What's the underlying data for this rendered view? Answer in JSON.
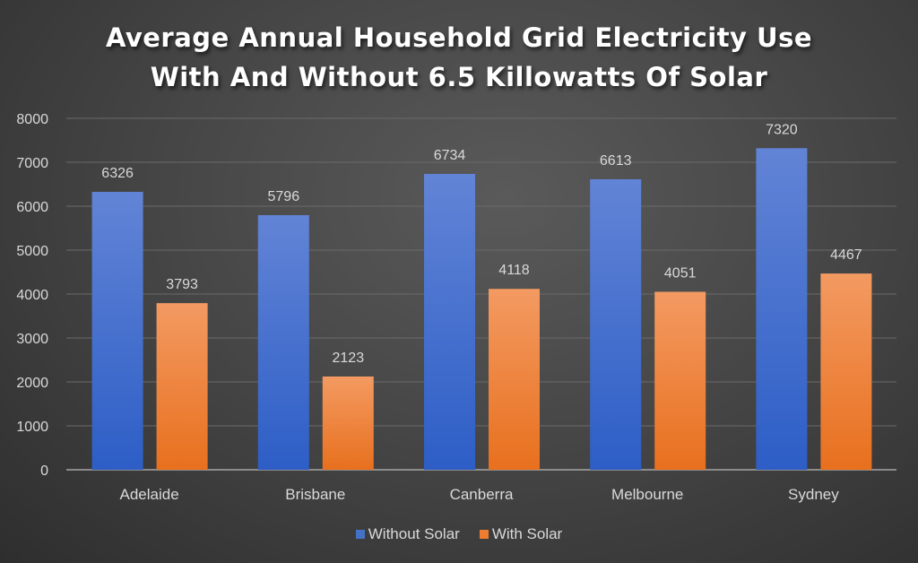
{
  "chart_data": {
    "type": "bar",
    "title": [
      "Average Annual Household Grid Electricity Use",
      "With And Without 6.5 Killowatts Of Solar"
    ],
    "categories": [
      "Adelaide",
      "Brisbane",
      "Canberra",
      "Melbourne",
      "Sydney"
    ],
    "series": [
      {
        "name": "Without Solar",
        "values": [
          6326,
          5796,
          6734,
          6613,
          7320
        ],
        "color": "#4472c4"
      },
      {
        "name": "With Solar",
        "values": [
          3793,
          2123,
          4118,
          4051,
          4467
        ],
        "color": "#ed7d31"
      }
    ],
    "yticks": [
      0,
      1000,
      2000,
      3000,
      4000,
      5000,
      6000,
      7000,
      8000
    ],
    "ylim": [
      0,
      8000
    ],
    "grid": true,
    "legend": "bottom",
    "data_labels": true
  }
}
